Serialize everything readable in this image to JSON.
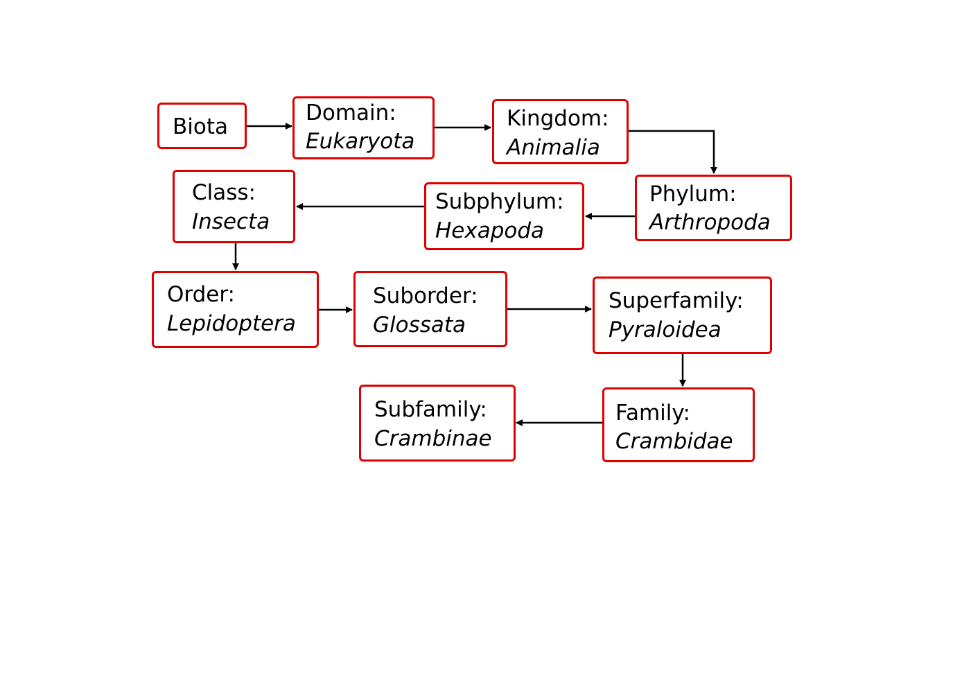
{
  "diagram": {
    "nodes": {
      "biota": {
        "label": "Biota"
      },
      "domain": {
        "rank": "Domain:",
        "taxon": "Eukaryota"
      },
      "kingdom": {
        "rank": "Kingdom:",
        "taxon": "Animalia"
      },
      "phylum": {
        "rank": "Phylum:",
        "taxon": "Arthropoda"
      },
      "subphylum": {
        "rank": "Subphylum:",
        "taxon": "Hexapoda"
      },
      "class": {
        "rank": "Class:",
        "taxon": "Insecta"
      },
      "order": {
        "rank": "Order:",
        "taxon": "Lepidoptera"
      },
      "suborder": {
        "rank": "Suborder:",
        "taxon": "Glossata"
      },
      "superfamily": {
        "rank": "Superfamily:",
        "taxon": "Pyraloidea"
      },
      "family": {
        "rank": "Family:",
        "taxon": "Crambidae"
      },
      "subfamily": {
        "rank": "Subfamily:",
        "taxon": "Crambinae"
      }
    },
    "edges": [
      {
        "from": "biota",
        "to": "domain"
      },
      {
        "from": "domain",
        "to": "kingdom"
      },
      {
        "from": "kingdom",
        "to": "phylum"
      },
      {
        "from": "phylum",
        "to": "subphylum"
      },
      {
        "from": "subphylum",
        "to": "class"
      },
      {
        "from": "class",
        "to": "order"
      },
      {
        "from": "order",
        "to": "suborder"
      },
      {
        "from": "suborder",
        "to": "superfamily"
      },
      {
        "from": "superfamily",
        "to": "family"
      },
      {
        "from": "family",
        "to": "subfamily"
      }
    ],
    "colors": {
      "box_border": "#e00000",
      "arrow": "#000000",
      "background": "#ffffff"
    }
  }
}
